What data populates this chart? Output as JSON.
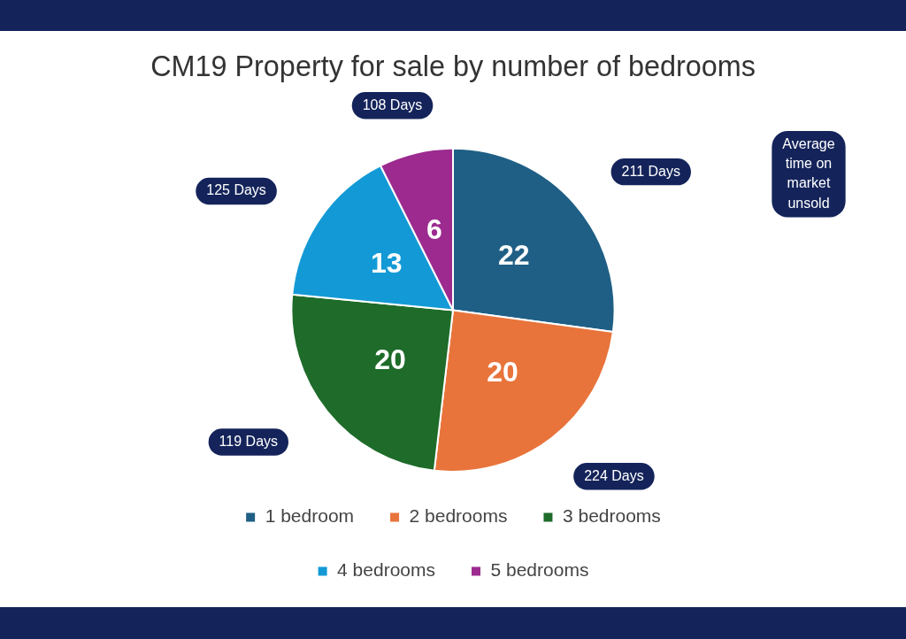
{
  "chart_data": {
    "type": "pie",
    "title": "CM19 Property for sale by number of bedrooms",
    "categories": [
      "1 bedroom",
      "2 bedrooms",
      "3 bedrooms",
      "4 bedrooms",
      "5 bedrooms"
    ],
    "values": [
      22,
      20,
      20,
      13,
      6
    ],
    "colors": [
      "#1f5f85",
      "#e8743b",
      "#1e6b2a",
      "#139ad6",
      "#9c2a8f"
    ],
    "data_labels": true,
    "legend": "bottom",
    "annotations": [
      "211 Days",
      "224 Days",
      "119 Days",
      "125 Days",
      "108 Days",
      "Average time on market unsold"
    ]
  }
}
